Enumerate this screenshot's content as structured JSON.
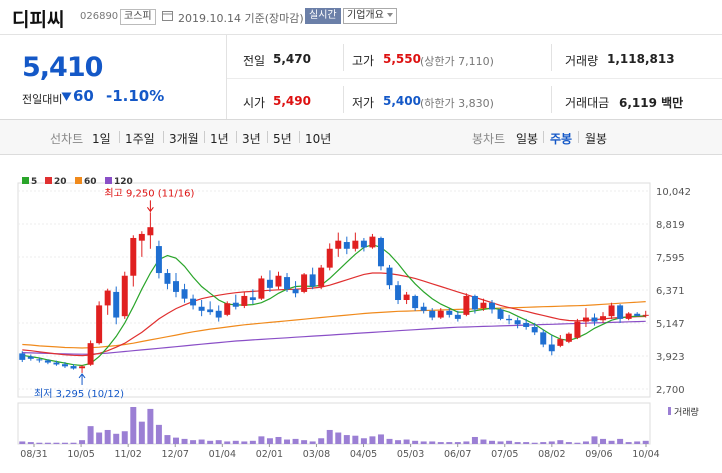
{
  "header": {
    "name": "디피씨",
    "code": "026890",
    "market": "코스피",
    "date": "2019.10.14 기준(장마감)",
    "realtime": "실시간",
    "company_info": "기업개요"
  },
  "price": {
    "current": "5,410",
    "change_label": "전일대비",
    "change_value": "60",
    "change_rate": "-1.10%",
    "direction": "down"
  },
  "stats": {
    "prev_close_label": "전일",
    "prev_close": "5,470",
    "high_label": "고가",
    "high": "5,550",
    "upper_limit": "(상한가 7,110)",
    "volume_label": "거래량",
    "volume": "1,118,813",
    "open_label": "시가",
    "open": "5,490",
    "low_label": "저가",
    "low": "5,400",
    "lower_limit": "(하한가 3,830)",
    "value_label": "거래대금",
    "value": "6,119 백만"
  },
  "toolbar": {
    "line_label": "선차트",
    "periods": [
      "1일",
      "1주일",
      "3개월",
      "1년",
      "3년",
      "5년",
      "10년"
    ],
    "candle_label": "봉차트",
    "candle_periods": [
      "일봉",
      "주봉",
      "월봉"
    ],
    "selected": "주봉"
  },
  "chart_data": {
    "type": "candlestick",
    "legend": [
      {
        "name": "5",
        "color": "#2aa52a"
      },
      {
        "name": "20",
        "color": "#e03030"
      },
      {
        "name": "60",
        "color": "#f08a1c"
      },
      {
        "name": "120",
        "color": "#8a4fc7"
      }
    ],
    "y_ticks": [
      "10,042",
      "8,819",
      "7,595",
      "6,371",
      "5,147",
      "3,923",
      "2,700"
    ],
    "x_ticks": [
      "08/31",
      "10/05",
      "11/02",
      "12/07",
      "01/04",
      "02/01",
      "03/08",
      "04/05",
      "05/03",
      "06/07",
      "07/05",
      "08/02",
      "09/06",
      "10/04"
    ],
    "ylim": [
      2700,
      10042
    ],
    "high_annotation": "최고 9,250 (11/16)",
    "low_annotation": "최저 3,295 (10/12)",
    "volume_label": "거래량",
    "candles": [
      {
        "o": 4020,
        "h": 4100,
        "l": 3700,
        "c": 3780
      },
      {
        "o": 3900,
        "h": 3980,
        "l": 3750,
        "c": 3820
      },
      {
        "o": 3800,
        "h": 3870,
        "l": 3680,
        "c": 3760
      },
      {
        "o": 3760,
        "h": 3800,
        "l": 3620,
        "c": 3680
      },
      {
        "o": 3680,
        "h": 3750,
        "l": 3560,
        "c": 3610
      },
      {
        "o": 3620,
        "h": 3700,
        "l": 3480,
        "c": 3540
      },
      {
        "o": 3550,
        "h": 3620,
        "l": 3420,
        "c": 3460
      },
      {
        "o": 3470,
        "h": 3580,
        "l": 3295,
        "c": 3540
      },
      {
        "o": 3600,
        "h": 4500,
        "l": 3560,
        "c": 4400
      },
      {
        "o": 4400,
        "h": 5950,
        "l": 4350,
        "c": 5800
      },
      {
        "o": 5800,
        "h": 6420,
        "l": 5450,
        "c": 6350
      },
      {
        "o": 6300,
        "h": 6500,
        "l": 5100,
        "c": 5350
      },
      {
        "o": 5400,
        "h": 7050,
        "l": 5300,
        "c": 6900
      },
      {
        "o": 6900,
        "h": 8400,
        "l": 6500,
        "c": 8300
      },
      {
        "o": 8200,
        "h": 8550,
        "l": 7600,
        "c": 8450
      },
      {
        "o": 8400,
        "h": 9250,
        "l": 7900,
        "c": 8700
      },
      {
        "o": 8000,
        "h": 8200,
        "l": 6800,
        "c": 7000
      },
      {
        "o": 7000,
        "h": 7150,
        "l": 6400,
        "c": 6600
      },
      {
        "o": 6700,
        "h": 7000,
        "l": 6100,
        "c": 6300
      },
      {
        "o": 6400,
        "h": 6600,
        "l": 5900,
        "c": 6050
      },
      {
        "o": 6050,
        "h": 6200,
        "l": 5650,
        "c": 5800
      },
      {
        "o": 5750,
        "h": 6000,
        "l": 5400,
        "c": 5600
      },
      {
        "o": 5650,
        "h": 5950,
        "l": 5450,
        "c": 5550
      },
      {
        "o": 5600,
        "h": 5800,
        "l": 5200,
        "c": 5350
      },
      {
        "o": 5450,
        "h": 5950,
        "l": 5400,
        "c": 5880
      },
      {
        "o": 5900,
        "h": 6200,
        "l": 5650,
        "c": 5750
      },
      {
        "o": 5780,
        "h": 6300,
        "l": 5700,
        "c": 6150
      },
      {
        "o": 6100,
        "h": 6400,
        "l": 5850,
        "c": 6000
      },
      {
        "o": 6050,
        "h": 6900,
        "l": 6000,
        "c": 6800
      },
      {
        "o": 6750,
        "h": 7100,
        "l": 6300,
        "c": 6450
      },
      {
        "o": 6500,
        "h": 7050,
        "l": 6400,
        "c": 6900
      },
      {
        "o": 6850,
        "h": 7000,
        "l": 6300,
        "c": 6400
      },
      {
        "o": 6400,
        "h": 6700,
        "l": 6100,
        "c": 6250
      },
      {
        "o": 6300,
        "h": 7000,
        "l": 6250,
        "c": 6950
      },
      {
        "o": 6950,
        "h": 7200,
        "l": 6400,
        "c": 6500
      },
      {
        "o": 6500,
        "h": 7300,
        "l": 6400,
        "c": 7200
      },
      {
        "o": 7200,
        "h": 8100,
        "l": 7100,
        "c": 7900
      },
      {
        "o": 7900,
        "h": 8500,
        "l": 7600,
        "c": 8200
      },
      {
        "o": 8150,
        "h": 8350,
        "l": 7700,
        "c": 7900
      },
      {
        "o": 7900,
        "h": 8500,
        "l": 7800,
        "c": 8200
      },
      {
        "o": 8200,
        "h": 8300,
        "l": 7800,
        "c": 7950
      },
      {
        "o": 7950,
        "h": 8450,
        "l": 7900,
        "c": 8350
      },
      {
        "o": 8300,
        "h": 8350,
        "l": 7100,
        "c": 7250
      },
      {
        "o": 7200,
        "h": 7300,
        "l": 6400,
        "c": 6550
      },
      {
        "o": 6550,
        "h": 6700,
        "l": 5850,
        "c": 6000
      },
      {
        "o": 6000,
        "h": 6300,
        "l": 5850,
        "c": 6200
      },
      {
        "o": 6150,
        "h": 6200,
        "l": 5600,
        "c": 5700
      },
      {
        "o": 5750,
        "h": 5900,
        "l": 5500,
        "c": 5600
      },
      {
        "o": 5600,
        "h": 5700,
        "l": 5250,
        "c": 5350
      },
      {
        "o": 5350,
        "h": 5700,
        "l": 5300,
        "c": 5600
      },
      {
        "o": 5600,
        "h": 5700,
        "l": 5350,
        "c": 5450
      },
      {
        "o": 5450,
        "h": 5600,
        "l": 5200,
        "c": 5300
      },
      {
        "o": 5450,
        "h": 6250,
        "l": 5400,
        "c": 6150
      },
      {
        "o": 6150,
        "h": 6200,
        "l": 5500,
        "c": 5650
      },
      {
        "o": 5700,
        "h": 6050,
        "l": 5600,
        "c": 5900
      },
      {
        "o": 5900,
        "h": 6000,
        "l": 5500,
        "c": 5650
      },
      {
        "o": 5650,
        "h": 5700,
        "l": 5250,
        "c": 5300
      },
      {
        "o": 5300,
        "h": 5450,
        "l": 5100,
        "c": 5250
      },
      {
        "o": 5250,
        "h": 5350,
        "l": 4950,
        "c": 5100
      },
      {
        "o": 5150,
        "h": 5300,
        "l": 4900,
        "c": 5000
      },
      {
        "o": 5000,
        "h": 5150,
        "l": 4700,
        "c": 4800
      },
      {
        "o": 4800,
        "h": 4900,
        "l": 4250,
        "c": 4350
      },
      {
        "o": 4350,
        "h": 4700,
        "l": 3950,
        "c": 4100
      },
      {
        "o": 4300,
        "h": 4700,
        "l": 4250,
        "c": 4550
      },
      {
        "o": 4450,
        "h": 4800,
        "l": 4400,
        "c": 4750
      },
      {
        "o": 4600,
        "h": 5300,
        "l": 4550,
        "c": 5200
      },
      {
        "o": 5200,
        "h": 5700,
        "l": 5000,
        "c": 5350
      },
      {
        "o": 5350,
        "h": 5500,
        "l": 5050,
        "c": 5200
      },
      {
        "o": 5250,
        "h": 5550,
        "l": 5150,
        "c": 5400
      },
      {
        "o": 5400,
        "h": 5900,
        "l": 5300,
        "c": 5800
      },
      {
        "o": 5800,
        "h": 5850,
        "l": 5150,
        "c": 5300
      },
      {
        "o": 5300,
        "h": 5550,
        "l": 5250,
        "c": 5500
      },
      {
        "o": 5490,
        "h": 5550,
        "l": 5400,
        "c": 5410
      },
      {
        "o": 5450,
        "h": 5600,
        "l": 5350,
        "c": 5450
      }
    ],
    "ma5": [
      3950,
      3900,
      3850,
      3780,
      3720,
      3660,
      3600,
      3570,
      3650,
      3900,
      4250,
      4650,
      5150,
      5750,
      6400,
      7000,
      7500,
      7650,
      7550,
      7250,
      6850,
      6500,
      6250,
      6000,
      5850,
      5820,
      5810,
      5830,
      5900,
      6050,
      6250,
      6400,
      6500,
      6520,
      6500,
      6550,
      6800,
      7100,
      7400,
      7700,
      7950,
      8050,
      7950,
      7700,
      7350,
      6950,
      6600,
      6300,
      6050,
      5850,
      5700,
      5550,
      5550,
      5600,
      5650,
      5700,
      5650,
      5550,
      5400,
      5250,
      5100,
      4900,
      4700,
      4550,
      4500,
      4600,
      4750,
      4950,
      5100,
      5250,
      5330,
      5380,
      5400,
      5410
    ],
    "ma20": [
      4150,
      4120,
      4080,
      4040,
      4000,
      3970,
      3950,
      3940,
      3960,
      4020,
      4120,
      4250,
      4400,
      4600,
      4800,
      5050,
      5300,
      5500,
      5680,
      5820,
      5950,
      6050,
      6120,
      6180,
      6230,
      6270,
      6300,
      6320,
      6340,
      6360,
      6380,
      6390,
      6400,
      6420,
      6440,
      6480,
      6550,
      6650,
      6750,
      6850,
      6950,
      7000,
      7000,
      6980,
      6930,
      6870,
      6800,
      6700,
      6600,
      6500,
      6400,
      6300,
      6200,
      6100,
      6000,
      5900,
      5800,
      5720,
      5650,
      5580,
      5500,
      5430,
      5350,
      5280,
      5240,
      5230,
      5240,
      5270,
      5300,
      5330,
      5350,
      5370,
      5380,
      5390
    ],
    "ma60": [
      4350,
      4330,
      4300,
      4280,
      4260,
      4240,
      4230,
      4220,
      4230,
      4250,
      4280,
      4310,
      4350,
      4400,
      4460,
      4520,
      4580,
      4640,
      4700,
      4760,
      4820,
      4870,
      4920,
      4960,
      5000,
      5040,
      5080,
      5110,
      5140,
      5170,
      5200,
      5230,
      5260,
      5290,
      5320,
      5350,
      5380,
      5410,
      5440,
      5470,
      5500,
      5520,
      5540,
      5560,
      5580,
      5590,
      5600,
      5610,
      5620,
      5630,
      5640,
      5650,
      5660,
      5670,
      5680,
      5690,
      5700,
      5710,
      5720,
      5730,
      5740,
      5750,
      5760,
      5770,
      5780,
      5790,
      5800,
      5820,
      5840,
      5860,
      5880,
      5900,
      5920,
      5940
    ],
    "ma120": [
      4050,
      4040,
      4030,
      4020,
      4010,
      4000,
      3995,
      3990,
      3995,
      4010,
      4030,
      4060,
      4090,
      4120,
      4150,
      4180,
      4210,
      4240,
      4270,
      4300,
      4330,
      4360,
      4390,
      4420,
      4450,
      4480,
      4500,
      4520,
      4540,
      4560,
      4580,
      4600,
      4620,
      4640,
      4660,
      4680,
      4700,
      4720,
      4740,
      4760,
      4780,
      4800,
      4820,
      4840,
      4860,
      4880,
      4900,
      4920,
      4940,
      4960,
      4975,
      4990,
      5000,
      5010,
      5020,
      5030,
      5040,
      5050,
      5060,
      5070,
      5080,
      5090,
      5100,
      5110,
      5120,
      5130,
      5140,
      5150,
      5160,
      5170,
      5180,
      5190,
      5200,
      5210
    ],
    "volume": [
      4,
      3,
      2,
      2,
      2,
      2,
      2,
      6,
      28,
      18,
      22,
      16,
      20,
      58,
      35,
      55,
      30,
      14,
      10,
      8,
      6,
      7,
      5,
      6,
      4,
      5,
      4,
      5,
      12,
      9,
      11,
      7,
      8,
      6,
      4,
      9,
      22,
      18,
      14,
      13,
      9,
      12,
      15,
      8,
      6,
      7,
      5,
      4,
      4,
      3,
      3,
      3,
      4,
      11,
      7,
      5,
      4,
      5,
      3,
      3,
      2,
      3,
      4,
      6,
      3,
      2,
      4,
      12,
      8,
      5,
      8,
      3,
      4,
      5
    ]
  }
}
